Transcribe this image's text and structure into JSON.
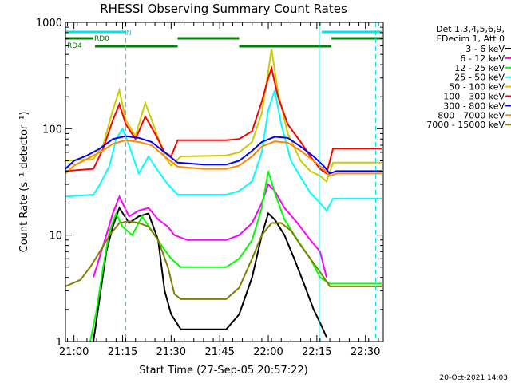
{
  "chart_data": {
    "type": "line",
    "title": "RHESSI Observing Summary Count Rates",
    "xlabel": "Start Time (27-Sep-05 20:57:22)",
    "ylabel": "Count Rate (s⁻¹ detector⁻¹)",
    "ylim": [
      1,
      1000
    ],
    "yscale": "log",
    "xlim": [
      "20:57:22",
      "22:35:30"
    ],
    "x_ticks": [
      "21:00",
      "21:15",
      "21:30",
      "21:45",
      "22:00",
      "22:15",
      "22:30"
    ],
    "y_ticks": [
      "1",
      "10",
      "100",
      "1000"
    ],
    "legend_header": [
      "Det 1,3,4,5,6,9,",
      "FDecim 1, Att 0"
    ],
    "legend_position": "right",
    "footer_timestamp": "20-Oct-2021 14:03",
    "flags": [
      {
        "label": "N",
        "color": "#00e6e6",
        "segments": [
          [
            "20:57:22",
            "21:16:00"
          ],
          [
            "22:16:30",
            "22:35:00"
          ]
        ]
      },
      {
        "label": "RD0",
        "color": "#008000",
        "segments": [
          [
            "20:57:22",
            "21:06:00"
          ],
          [
            "21:32:00",
            "21:51:00"
          ],
          [
            "22:19:30",
            "22:35:00"
          ]
        ]
      },
      {
        "label": "RD4",
        "color": "#008000",
        "segments": [
          [
            "21:06:30",
            "21:32:00"
          ],
          [
            "21:51:00",
            "22:19:30"
          ]
        ]
      }
    ],
    "vlines": [
      {
        "x": "21:16:00",
        "style": "dashed",
        "color": "#00e6e6"
      },
      {
        "x": "22:15:45",
        "style": "solid",
        "color": "#00e6e6"
      },
      {
        "x": "22:33:10",
        "style": "dashed",
        "color": "#00e6e6"
      }
    ],
    "series": [
      {
        "name": "3 - 6 keV",
        "color": "#000000",
        "points": [
          [
            "21:06",
            "1"
          ],
          [
            "21:10",
            "7"
          ],
          [
            "21:12",
            "12"
          ],
          [
            "21:14",
            "18"
          ],
          [
            "21:17",
            "13"
          ],
          [
            "21:20",
            "15"
          ],
          [
            "21:23",
            "16"
          ],
          [
            "21:26",
            "9"
          ],
          [
            "21:28",
            "3"
          ],
          [
            "21:30",
            "1.8"
          ],
          [
            "21:33",
            "1.3"
          ],
          [
            "21:47",
            "1.3"
          ],
          [
            "21:51",
            "1.8"
          ],
          [
            "21:55",
            "4"
          ],
          [
            "21:58",
            "10"
          ],
          [
            "22:00",
            "16"
          ],
          [
            "22:02",
            "14"
          ],
          [
            "22:05",
            "10"
          ],
          [
            "22:08",
            "6"
          ],
          [
            "22:11",
            "3.5"
          ],
          [
            "22:14",
            "2"
          ],
          [
            "22:16",
            "1.5"
          ],
          [
            "22:18",
            "1.1"
          ]
        ]
      },
      {
        "name": "6 - 12 keV",
        "color": "#ff00ff",
        "points": [
          [
            "21:06",
            "4"
          ],
          [
            "21:10",
            "10"
          ],
          [
            "21:12",
            "16"
          ],
          [
            "21:14",
            "23"
          ],
          [
            "21:17",
            "15"
          ],
          [
            "21:20",
            "17"
          ],
          [
            "21:23",
            "18"
          ],
          [
            "21:26",
            "14"
          ],
          [
            "21:29",
            "12"
          ],
          [
            "21:31",
            "10"
          ],
          [
            "21:35",
            "9"
          ],
          [
            "21:47",
            "9"
          ],
          [
            "21:51",
            "10"
          ],
          [
            "21:55",
            "13"
          ],
          [
            "21:58",
            "20"
          ],
          [
            "22:00",
            "30"
          ],
          [
            "22:02",
            "26"
          ],
          [
            "22:05",
            "18"
          ],
          [
            "22:09",
            "13"
          ],
          [
            "22:13",
            "9"
          ],
          [
            "22:16",
            "7"
          ],
          [
            "22:18",
            "4"
          ]
        ]
      },
      {
        "name": "12 - 25 keV",
        "color": "#00ff00",
        "points": [
          [
            "21:05",
            "1"
          ],
          [
            "21:07",
            "2"
          ],
          [
            "21:09",
            "5"
          ],
          [
            "21:11",
            "11"
          ],
          [
            "21:13",
            "16"
          ],
          [
            "21:15",
            "12"
          ],
          [
            "21:18",
            "10"
          ],
          [
            "21:21",
            "15"
          ],
          [
            "21:24",
            "11"
          ],
          [
            "21:27",
            "8"
          ],
          [
            "21:30",
            "6"
          ],
          [
            "21:33",
            "5"
          ],
          [
            "21:47",
            "5"
          ],
          [
            "21:51",
            "6"
          ],
          [
            "21:55",
            "9"
          ],
          [
            "21:58",
            "18"
          ],
          [
            "22:00",
            "40"
          ],
          [
            "22:02",
            "25"
          ],
          [
            "22:05",
            "14"
          ],
          [
            "22:09",
            "9"
          ],
          [
            "22:13",
            "6"
          ],
          [
            "22:16",
            "4"
          ],
          [
            "22:19",
            "3.5"
          ],
          [
            "22:35",
            "3.5"
          ]
        ]
      },
      {
        "name": "25 - 50 keV",
        "color": "#00ffff",
        "points": [
          [
            "20:57:22",
            "23"
          ],
          [
            "21:06",
            "24"
          ],
          [
            "21:08",
            "30"
          ],
          [
            "21:11",
            "45"
          ],
          [
            "21:13",
            "80"
          ],
          [
            "21:15",
            "100"
          ],
          [
            "21:17",
            "70"
          ],
          [
            "21:20",
            "38"
          ],
          [
            "21:23",
            "55"
          ],
          [
            "21:26",
            "40"
          ],
          [
            "21:29",
            "30"
          ],
          [
            "21:32",
            "24"
          ],
          [
            "21:47",
            "24"
          ],
          [
            "21:51",
            "26"
          ],
          [
            "21:55",
            "32"
          ],
          [
            "21:58",
            "60"
          ],
          [
            "22:00",
            "150"
          ],
          [
            "22:02",
            "230"
          ],
          [
            "22:04",
            "110"
          ],
          [
            "22:07",
            "50"
          ],
          [
            "22:10",
            "35"
          ],
          [
            "22:13",
            "25"
          ],
          [
            "22:16",
            "20"
          ],
          [
            "22:18",
            "17"
          ],
          [
            "22:20",
            "22"
          ],
          [
            "22:35",
            "22"
          ]
        ]
      },
      {
        "name": "50 - 100 keV",
        "color": "#cccc00",
        "points": [
          [
            "20:57:22",
            "50"
          ],
          [
            "21:06",
            "52"
          ],
          [
            "21:09",
            "70"
          ],
          [
            "21:12",
            "150"
          ],
          [
            "21:14",
            "230"
          ],
          [
            "21:16",
            "120"
          ],
          [
            "21:19",
            "85"
          ],
          [
            "21:22",
            "175"
          ],
          [
            "21:25",
            "100"
          ],
          [
            "21:28",
            "55"
          ],
          [
            "21:30",
            "45"
          ],
          [
            "21:33",
            "55"
          ],
          [
            "21:47",
            "56"
          ],
          [
            "21:51",
            "60"
          ],
          [
            "21:55",
            "75"
          ],
          [
            "21:58",
            "140"
          ],
          [
            "22:00",
            "350"
          ],
          [
            "22:01",
            "560"
          ],
          [
            "22:03",
            "220"
          ],
          [
            "22:06",
            "90"
          ],
          [
            "22:10",
            "50"
          ],
          [
            "22:13",
            "40"
          ],
          [
            "22:16",
            "36"
          ],
          [
            "22:18",
            "32"
          ],
          [
            "22:20",
            "48"
          ],
          [
            "22:35",
            "48"
          ]
        ]
      },
      {
        "name": "100 - 300 keV",
        "color": "#ff0000",
        "points": [
          [
            "20:57:22",
            "40"
          ],
          [
            "21:06",
            "42"
          ],
          [
            "21:09",
            "65"
          ],
          [
            "21:12",
            "120"
          ],
          [
            "21:14",
            "170"
          ],
          [
            "21:16",
            "110"
          ],
          [
            "21:19",
            "80"
          ],
          [
            "21:22",
            "130"
          ],
          [
            "21:25",
            "90"
          ],
          [
            "21:28",
            "60"
          ],
          [
            "21:30",
            "55"
          ],
          [
            "21:32",
            "78"
          ],
          [
            "21:47",
            "78"
          ],
          [
            "21:51",
            "80"
          ],
          [
            "21:55",
            "95"
          ],
          [
            "21:58",
            "180"
          ],
          [
            "22:00",
            "300"
          ],
          [
            "22:01",
            "370"
          ],
          [
            "22:03",
            "200"
          ],
          [
            "22:06",
            "110"
          ],
          [
            "22:10",
            "75"
          ],
          [
            "22:13",
            "55"
          ],
          [
            "22:16",
            "42"
          ],
          [
            "22:18",
            "38"
          ],
          [
            "22:20",
            "65"
          ],
          [
            "22:35",
            "65"
          ]
        ]
      },
      {
        "name": "300 - 800 keV",
        "color": "#0000ff",
        "points": [
          [
            "20:57:22",
            "42"
          ],
          [
            "21:00",
            "50"
          ],
          [
            "21:04",
            "56"
          ],
          [
            "21:08",
            "65"
          ],
          [
            "21:12",
            "80"
          ],
          [
            "21:16",
            "85"
          ],
          [
            "21:20",
            "82"
          ],
          [
            "21:24",
            "75"
          ],
          [
            "21:28",
            "60"
          ],
          [
            "21:32",
            "48"
          ],
          [
            "21:40",
            "46"
          ],
          [
            "21:47",
            "46"
          ],
          [
            "21:51",
            "50"
          ],
          [
            "21:55",
            "62"
          ],
          [
            "21:58",
            "75"
          ],
          [
            "22:02",
            "84"
          ],
          [
            "22:06",
            "82"
          ],
          [
            "22:10",
            "68"
          ],
          [
            "22:14",
            "55"
          ],
          [
            "22:17",
            "45"
          ],
          [
            "22:19",
            "38"
          ],
          [
            "22:21",
            "40"
          ],
          [
            "22:35",
            "40"
          ]
        ]
      },
      {
        "name": "800 - 7000 keV",
        "color": "#ff8800",
        "points": [
          [
            "20:57:22",
            "38"
          ],
          [
            "21:00",
            "45"
          ],
          [
            "21:04",
            "52"
          ],
          [
            "21:08",
            "60"
          ],
          [
            "21:12",
            "72"
          ],
          [
            "21:16",
            "78"
          ],
          [
            "21:20",
            "75"
          ],
          [
            "21:24",
            "70"
          ],
          [
            "21:28",
            "55"
          ],
          [
            "21:32",
            "44"
          ],
          [
            "21:40",
            "42"
          ],
          [
            "21:47",
            "42"
          ],
          [
            "21:51",
            "45"
          ],
          [
            "21:55",
            "55"
          ],
          [
            "21:58",
            "68"
          ],
          [
            "22:02",
            "76"
          ],
          [
            "22:06",
            "74"
          ],
          [
            "22:10",
            "62"
          ],
          [
            "22:14",
            "50"
          ],
          [
            "22:17",
            "42"
          ],
          [
            "22:19",
            "36"
          ],
          [
            "22:21",
            "38"
          ],
          [
            "22:35",
            "38"
          ]
        ]
      },
      {
        "name": "7000 - 15000 keV",
        "color": "#808000",
        "points": [
          [
            "20:57:22",
            "3.3"
          ],
          [
            "21:02",
            "3.8"
          ],
          [
            "21:05",
            "5"
          ],
          [
            "21:08",
            "7"
          ],
          [
            "21:11",
            "10"
          ],
          [
            "21:14",
            "13"
          ],
          [
            "21:17",
            "13.5"
          ],
          [
            "21:20",
            "13"
          ],
          [
            "21:23",
            "12"
          ],
          [
            "21:26",
            "9"
          ],
          [
            "21:29",
            "5"
          ],
          [
            "21:31",
            "2.8"
          ],
          [
            "21:33",
            "2.5"
          ],
          [
            "21:47",
            "2.5"
          ],
          [
            "21:51",
            "3.2"
          ],
          [
            "21:55",
            "6"
          ],
          [
            "21:58",
            "10"
          ],
          [
            "22:01",
            "13"
          ],
          [
            "22:04",
            "13"
          ],
          [
            "22:07",
            "11"
          ],
          [
            "22:10",
            "8"
          ],
          [
            "22:13",
            "6"
          ],
          [
            "22:16",
            "4.5"
          ],
          [
            "22:19",
            "3.3"
          ],
          [
            "22:35",
            "3.3"
          ]
        ]
      }
    ]
  }
}
